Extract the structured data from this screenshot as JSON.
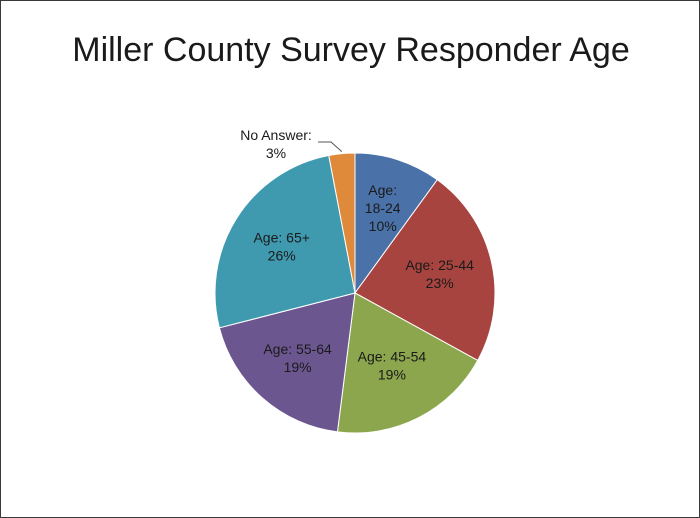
{
  "chart_data": {
    "type": "pie",
    "title": "Miller County Survey Responder Age",
    "slices": [
      {
        "label": "Age: 18-24",
        "value": 10,
        "value_label": "10%",
        "color": "#4a72a8"
      },
      {
        "label": "Age: 25-44",
        "value": 23,
        "value_label": "23%",
        "color": "#a8443f"
      },
      {
        "label": "Age: 45-54",
        "value": 19,
        "value_label": "19%",
        "color": "#8ca64d"
      },
      {
        "label": "Age: 55-64",
        "value": 19,
        "value_label": "19%",
        "color": "#6c5690"
      },
      {
        "label": "Age: 65+",
        "value": 26,
        "value_label": "26%",
        "color": "#3f9aaf"
      },
      {
        "label": "No Answer:",
        "value": 3,
        "value_label": "3%",
        "color": "#df8a3b"
      }
    ]
  }
}
